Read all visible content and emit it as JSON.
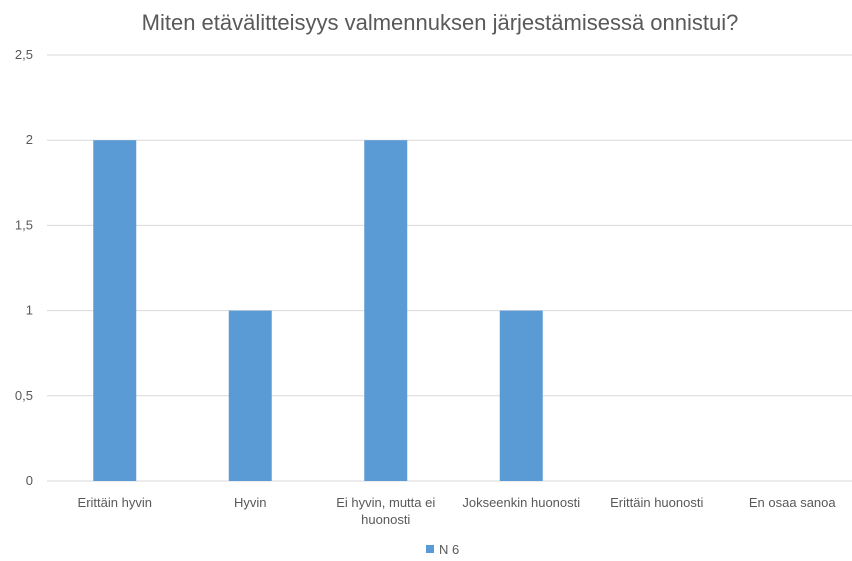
{
  "chart_data": {
    "type": "bar",
    "title": "Miten etävälitteisyys valmennuksen järjestämisessä onnistui?",
    "categories": [
      "Erittäin hyvin",
      "Hyvin",
      "Ei hyvin, mutta ei huonosti",
      "Jokseenkin huonosti",
      "Erittäin huonosti",
      "En osaa sanoa"
    ],
    "category_lines": [
      [
        "Erittäin hyvin"
      ],
      [
        "Hyvin"
      ],
      [
        "Ei hyvin, mutta ei",
        "huonosti"
      ],
      [
        "Jokseenkin huonosti"
      ],
      [
        "Erittäin huonosti"
      ],
      [
        "En osaa sanoa"
      ]
    ],
    "series": [
      {
        "name": "N 6",
        "values": [
          2,
          1,
          2,
          1,
          0,
          0
        ],
        "color": "#5b9bd5"
      }
    ],
    "yticks": [
      "0",
      "0,5",
      "1",
      "1,5",
      "2",
      "2,5"
    ],
    "ytick_values": [
      0,
      0.5,
      1,
      1.5,
      2,
      2.5
    ],
    "ylim": [
      0,
      2.5
    ],
    "grid": true,
    "legend_position": "bottom",
    "grid_color": "#d9d9d9",
    "text_color": "#595959"
  }
}
